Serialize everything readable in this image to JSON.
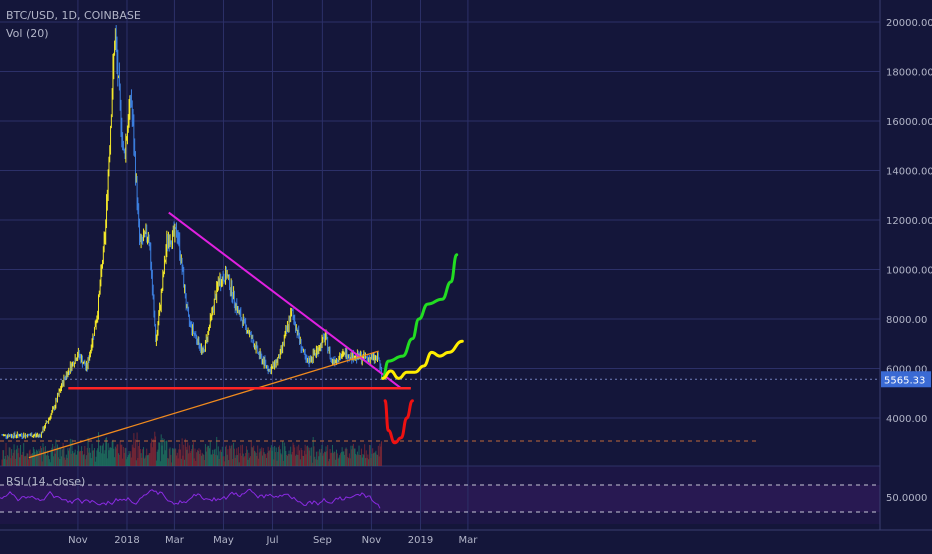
{
  "header": {
    "symbol_line": "BTC/USD, 1D, COINBASE",
    "volume_line": "Vol (20)"
  },
  "rsi_label": "RSI (14, close)",
  "rsi_value": "50.0000",
  "last_price": "5565.33",
  "colors": {
    "background": "#14163a",
    "candle_up": "#f5e92a",
    "candle_down": "#3c7fe0",
    "resistance": "#e020e0",
    "support": "#f08a1e",
    "horizontal_level": "#ff2424",
    "scenario_bull": "#22dd22",
    "scenario_neutral": "#ffee00",
    "scenario_bear": "#ee1111",
    "rsi_line": "#8a2be2"
  },
  "chart_data": {
    "type": "line",
    "title": "BTC/USD, 1D, COINBASE",
    "x_ticks": [
      "Nov",
      "2018",
      "Mar",
      "May",
      "Jul",
      "Sep",
      "Nov",
      "2019",
      "Mar"
    ],
    "y_ticks": [
      4000,
      6000,
      8000,
      10000,
      12000,
      14000,
      16000,
      18000,
      20000
    ],
    "ylim": [
      2000,
      21000
    ],
    "price_path": [
      {
        "date": "2017-09-15",
        "price": 3300
      },
      {
        "date": "2017-10-01",
        "price": 4300
      },
      {
        "date": "2017-10-15",
        "price": 5600
      },
      {
        "date": "2017-11-01",
        "price": 6600
      },
      {
        "date": "2017-11-12",
        "price": 6000
      },
      {
        "date": "2017-11-25",
        "price": 8200
      },
      {
        "date": "2017-12-05",
        "price": 11500
      },
      {
        "date": "2017-12-17",
        "price": 19500
      },
      {
        "date": "2017-12-28",
        "price": 14500
      },
      {
        "date": "2018-01-06",
        "price": 17000
      },
      {
        "date": "2018-01-17",
        "price": 11000
      },
      {
        "date": "2018-01-28",
        "price": 11500
      },
      {
        "date": "2018-02-06",
        "price": 7000
      },
      {
        "date": "2018-02-20",
        "price": 11200
      },
      {
        "date": "2018-03-05",
        "price": 11500
      },
      {
        "date": "2018-03-18",
        "price": 8000
      },
      {
        "date": "2018-04-06",
        "price": 6600
      },
      {
        "date": "2018-04-25",
        "price": 9500
      },
      {
        "date": "2018-05-05",
        "price": 9800
      },
      {
        "date": "2018-05-20",
        "price": 8200
      },
      {
        "date": "2018-06-01",
        "price": 7500
      },
      {
        "date": "2018-06-15",
        "price": 6500
      },
      {
        "date": "2018-06-28",
        "price": 5900
      },
      {
        "date": "2018-07-10",
        "price": 6500
      },
      {
        "date": "2018-07-25",
        "price": 8300
      },
      {
        "date": "2018-08-05",
        "price": 7000
      },
      {
        "date": "2018-08-12",
        "price": 6200
      },
      {
        "date": "2018-08-25",
        "price": 6700
      },
      {
        "date": "2018-09-05",
        "price": 7300
      },
      {
        "date": "2018-09-12",
        "price": 6300
      },
      {
        "date": "2018-10-01",
        "price": 6600
      },
      {
        "date": "2018-10-15",
        "price": 6450
      },
      {
        "date": "2018-11-10",
        "price": 6400
      },
      {
        "date": "2018-11-14",
        "price": 5565
      }
    ],
    "drawn_lines": [
      {
        "name": "descending resistance",
        "from": {
          "date": "2018-02-22",
          "price": 12300
        },
        "to": {
          "date": "2018-12-08",
          "price": 5200
        }
      },
      {
        "name": "ascending support",
        "from": {
          "date": "2017-09-01",
          "price": 2400
        },
        "to": {
          "date": "2018-11-10",
          "price": 6700
        }
      },
      {
        "name": "horizontal level",
        "from": {
          "date": "2017-10-20",
          "price": 5200
        },
        "to": {
          "date": "2018-12-20",
          "price": 5200
        }
      }
    ],
    "scenarios": {
      "green": [
        {
          "date": "2018-11-15",
          "price": 5600
        },
        {
          "date": "2018-11-22",
          "price": 6300
        },
        {
          "date": "2018-12-10",
          "price": 6500
        },
        {
          "date": "2018-12-22",
          "price": 7200
        },
        {
          "date": "2018-12-30",
          "price": 8000
        },
        {
          "date": "2019-01-10",
          "price": 8600
        },
        {
          "date": "2019-01-28",
          "price": 8800
        },
        {
          "date": "2019-02-08",
          "price": 9500
        },
        {
          "date": "2019-02-15",
          "price": 10600
        }
      ],
      "yellow": [
        {
          "date": "2018-11-15",
          "price": 5600
        },
        {
          "date": "2018-11-25",
          "price": 5900
        },
        {
          "date": "2018-12-05",
          "price": 5600
        },
        {
          "date": "2018-12-15",
          "price": 5850
        },
        {
          "date": "2018-12-25",
          "price": 5850
        },
        {
          "date": "2019-01-05",
          "price": 6100
        },
        {
          "date": "2019-01-15",
          "price": 6650
        },
        {
          "date": "2019-01-25",
          "price": 6500
        },
        {
          "date": "2019-02-05",
          "price": 6650
        },
        {
          "date": "2019-02-22",
          "price": 7100
        }
      ],
      "red": [
        {
          "date": "2018-11-18",
          "price": 4700
        },
        {
          "date": "2018-11-22",
          "price": 3500
        },
        {
          "date": "2018-11-30",
          "price": 3000
        },
        {
          "date": "2018-12-08",
          "price": 3200
        },
        {
          "date": "2018-12-15",
          "price": 4000
        },
        {
          "date": "2018-12-22",
          "price": 4700
        }
      ]
    }
  }
}
